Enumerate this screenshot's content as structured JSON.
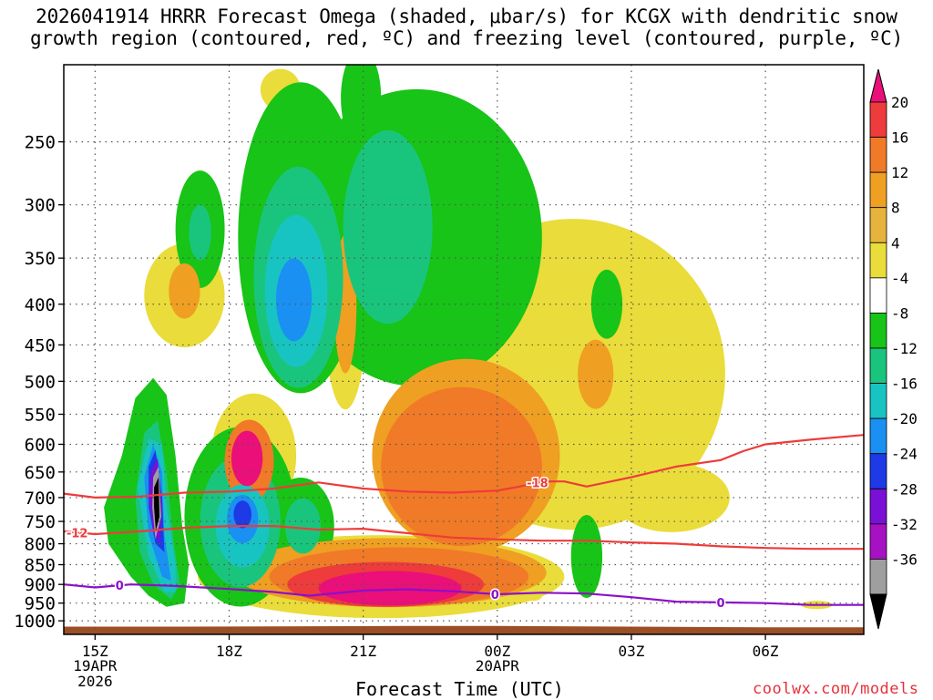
{
  "title": {
    "line1": "2026041914 HRRR Forecast Omega (shaded, μbar/s) for KCGX with dendritic snow",
    "line2": "growth region (contoured, red, ºC) and freezing level (contoured, purple, ºC)"
  },
  "footer": {
    "xlabel": "Forecast Time (UTC)",
    "credit": "coolwx.com/models"
  },
  "chart_data": {
    "type": "heatmap",
    "title": "2026041914 HRRR Forecast Omega (shaded, μbar/s) for KCGX with dendritic snow growth region (contoured, red, ºC) and freezing level (contoured, purple, ºC)",
    "xlabel": "Forecast Time (UTC)",
    "ylabel": "",
    "x_unit": "hours since 2026-04-19 14Z",
    "xlim": [
      0.3,
      18.2
    ],
    "y_axis": "pressure (mb), log scale, inverted",
    "ylim": [
      1040,
      200
    ],
    "x_ticks": [
      {
        "value": 1,
        "label": "15Z",
        "sub": [
          "19APR",
          "2026"
        ]
      },
      {
        "value": 4,
        "label": "18Z",
        "sub": []
      },
      {
        "value": 7,
        "label": "21Z",
        "sub": []
      },
      {
        "value": 10,
        "label": "00Z",
        "sub": [
          "20APR"
        ]
      },
      {
        "value": 13,
        "label": "03Z",
        "sub": []
      },
      {
        "value": 16,
        "label": "06Z",
        "sub": []
      }
    ],
    "y_ticks": [
      250,
      300,
      350,
      400,
      450,
      500,
      550,
      600,
      650,
      700,
      750,
      800,
      850,
      900,
      950,
      1000
    ],
    "grid": true,
    "colorbar": {
      "labels": [
        "20",
        "16",
        "12",
        "8",
        "4",
        "-4",
        "-8",
        "-12",
        "-16",
        "-20",
        "-24",
        "-28",
        "-32",
        "-36"
      ],
      "colors": [
        "#ea0f79",
        "#ee3b3b",
        "#f07a27",
        "#ef9f22",
        "#e6b43c",
        "#eadc3a",
        "#ffffff",
        "#17c417",
        "#19c57d",
        "#18c4c2",
        "#1a90f2",
        "#1d3ae6",
        "#7a0fd6",
        "#a711c4",
        "#9f9f9f",
        "#000000"
      ]
    },
    "omega_field": [
      {
        "value": -8,
        "t": 3.35,
        "p": 322,
        "rt": 0.55,
        "rp": 0.17
      },
      {
        "value": -12,
        "t": 3.35,
        "p": 325,
        "rt": 0.25,
        "rp": 0.08
      },
      {
        "value": -8,
        "t": 8.2,
        "p": 330,
        "rt": 2.8,
        "rp": 0.43
      },
      {
        "value": -12,
        "t": 7.55,
        "p": 320,
        "rt": 1.0,
        "rp": 0.28
      },
      {
        "value": -8,
        "t": 6.95,
        "p": 220,
        "rt": 0.45,
        "rp": 0.14
      },
      {
        "value": -8,
        "t": 5.6,
        "p": 330,
        "rt": 1.4,
        "rp": 0.45
      },
      {
        "value": -12,
        "t": 5.55,
        "p": 370,
        "rt": 1.0,
        "rp": 0.32
      },
      {
        "value": -16,
        "t": 5.5,
        "p": 385,
        "rt": 0.7,
        "rp": 0.22
      },
      {
        "value": -20,
        "t": 5.45,
        "p": 395,
        "rt": 0.4,
        "rp": 0.12
      },
      {
        "value": -8,
        "t": 12.45,
        "p": 400,
        "rt": 0.35,
        "rp": 0.1
      },
      {
        "value": -8,
        "t": 4.25,
        "p": 740,
        "rt": 1.25,
        "rp": 0.26
      },
      {
        "value": -12,
        "t": 4.25,
        "p": 750,
        "rt": 0.9,
        "rp": 0.19
      },
      {
        "value": -16,
        "t": 4.3,
        "p": 760,
        "rt": 0.6,
        "rp": 0.12
      },
      {
        "value": -20,
        "t": 4.3,
        "p": 745,
        "rt": 0.35,
        "rp": 0.07
      },
      {
        "value": -24,
        "t": 4.3,
        "p": 735,
        "rt": 0.2,
        "rp": 0.04
      },
      {
        "value": -8,
        "t": 5.6,
        "p": 760,
        "rt": 0.75,
        "rp": 0.14
      },
      {
        "value": -12,
        "t": 5.65,
        "p": 760,
        "rt": 0.4,
        "rp": 0.08
      },
      {
        "value": -8,
        "t": 9.9,
        "p": 890,
        "rt": 0.4,
        "rp": 0.05
      },
      {
        "value": -12,
        "t": 9.9,
        "p": 895,
        "rt": 0.2,
        "rp": 0.025
      },
      {
        "value": -8,
        "t": 12.0,
        "p": 830,
        "rt": 0.35,
        "rp": 0.12
      },
      {
        "value": 4,
        "t": 11.7,
        "p": 490,
        "rt": 3.4,
        "rp": 0.45
      },
      {
        "value": 4,
        "t": 7.4,
        "p": 880,
        "rt": 4.1,
        "rp": 0.12
      },
      {
        "value": 8,
        "t": 7.6,
        "p": 870,
        "rt": 3.5,
        "rp": 0.1
      },
      {
        "value": 8,
        "t": 9.3,
        "p": 620,
        "rt": 2.1,
        "rp": 0.28
      },
      {
        "value": 12,
        "t": 7.8,
        "p": 880,
        "rt": 2.9,
        "rp": 0.085
      },
      {
        "value": 12,
        "t": 9.2,
        "p": 640,
        "rt": 1.8,
        "rp": 0.23
      },
      {
        "value": 16,
        "t": 7.5,
        "p": 900,
        "rt": 2.2,
        "rp": 0.065
      },
      {
        "value": 20,
        "t": 7.6,
        "p": 910,
        "rt": 1.6,
        "rp": 0.05
      },
      {
        "value": 4,
        "t": 4.55,
        "p": 620,
        "rt": 0.95,
        "rp": 0.18
      },
      {
        "value": 12,
        "t": 4.45,
        "p": 630,
        "rt": 0.55,
        "rp": 0.12
      },
      {
        "value": 20,
        "t": 4.4,
        "p": 625,
        "rt": 0.35,
        "rp": 0.08
      },
      {
        "value": 4,
        "t": 3.0,
        "p": 390,
        "rt": 0.9,
        "rp": 0.15
      },
      {
        "value": 8,
        "t": 3.0,
        "p": 385,
        "rt": 0.35,
        "rp": 0.08
      },
      {
        "value": 4,
        "t": 6.6,
        "p": 390,
        "rt": 0.5,
        "rp": 0.33
      },
      {
        "value": 8,
        "t": 6.6,
        "p": 400,
        "rt": 0.25,
        "rp": 0.2
      },
      {
        "value": 4,
        "t": 12.4,
        "p": 560,
        "rt": 1.2,
        "rp": 0.28
      },
      {
        "value": 8,
        "t": 12.2,
        "p": 490,
        "rt": 0.4,
        "rp": 0.1
      },
      {
        "value": 4,
        "t": 13.9,
        "p": 700,
        "rt": 1.3,
        "rp": 0.1
      },
      {
        "value": 4,
        "t": 5.15,
        "p": 215,
        "rt": 0.45,
        "rp": 0.06
      },
      {
        "value": 4,
        "t": 4.75,
        "p": 280,
        "rt": 0.15,
        "rp": 0.06
      },
      {
        "value": 4,
        "t": 10.8,
        "p": 930,
        "rt": 0.2,
        "rp": 0.015
      },
      {
        "value": 4,
        "t": 17.15,
        "p": 955,
        "rt": 0.35,
        "rp": 0.012
      }
    ],
    "omega_ribbon": [
      {
        "value": -8,
        "points": [
          [
            1.2,
            720
          ],
          [
            1.6,
            620
          ],
          [
            1.9,
            525
          ],
          [
            2.3,
            495
          ],
          [
            2.6,
            520
          ],
          [
            2.8,
            620
          ],
          [
            2.95,
            760
          ],
          [
            3.1,
            850
          ],
          [
            3.0,
            950
          ],
          [
            2.6,
            960
          ],
          [
            2.2,
            930
          ],
          [
            1.8,
            880
          ],
          [
            1.3,
            800
          ]
        ]
      },
      {
        "value": -12,
        "points": [
          [
            1.9,
            700
          ],
          [
            2.1,
            580
          ],
          [
            2.4,
            560
          ],
          [
            2.6,
            650
          ],
          [
            2.75,
            790
          ],
          [
            2.9,
            900
          ],
          [
            2.7,
            940
          ],
          [
            2.3,
            900
          ],
          [
            2.0,
            820
          ]
        ]
      },
      {
        "value": -16,
        "points": [
          [
            1.95,
            680
          ],
          [
            2.2,
            590
          ],
          [
            2.5,
            600
          ],
          [
            2.6,
            720
          ],
          [
            2.8,
            850
          ],
          [
            2.8,
            920
          ],
          [
            2.55,
            920
          ],
          [
            2.2,
            830
          ]
        ]
      },
      {
        "value": -20,
        "points": [
          [
            2.1,
            660
          ],
          [
            2.3,
            600
          ],
          [
            2.5,
            650
          ],
          [
            2.55,
            780
          ],
          [
            2.7,
            890
          ],
          [
            2.5,
            880
          ],
          [
            2.2,
            780
          ]
        ]
      },
      {
        "value": -24,
        "points": [
          [
            2.2,
            640
          ],
          [
            2.35,
            610
          ],
          [
            2.5,
            700
          ],
          [
            2.55,
            820
          ],
          [
            2.35,
            800
          ],
          [
            2.2,
            720
          ]
        ]
      },
      {
        "value": -28,
        "points": [
          [
            2.25,
            650
          ],
          [
            2.4,
            625
          ],
          [
            2.5,
            720
          ],
          [
            2.45,
            800
          ],
          [
            2.3,
            770
          ],
          [
            2.2,
            700
          ]
        ]
      },
      {
        "value": -32,
        "points": [
          [
            2.3,
            660
          ],
          [
            2.42,
            640
          ],
          [
            2.48,
            740
          ],
          [
            2.35,
            790
          ],
          [
            2.28,
            720
          ]
        ]
      },
      {
        "value": -36,
        "points": [
          [
            2.32,
            680
          ],
          [
            2.42,
            660
          ],
          [
            2.44,
            740
          ],
          [
            2.36,
            770
          ],
          [
            2.32,
            720
          ]
        ]
      }
    ],
    "snow_growth_contours": [
      {
        "label": "-18",
        "color": "#ee3b3b",
        "label_at": 10.9,
        "points": [
          [
            0.3,
            692
          ],
          [
            1.0,
            700
          ],
          [
            2.0,
            698
          ],
          [
            3.0,
            690
          ],
          [
            4.0,
            688
          ],
          [
            5.0,
            682
          ],
          [
            6.0,
            670
          ],
          [
            7.0,
            682
          ],
          [
            8.0,
            688
          ],
          [
            9.0,
            690
          ],
          [
            10.0,
            686
          ],
          [
            10.5,
            678
          ],
          [
            11.0,
            668
          ],
          [
            11.5,
            668
          ],
          [
            12.0,
            678
          ],
          [
            13.0,
            660
          ],
          [
            14.0,
            640
          ],
          [
            15.0,
            628
          ],
          [
            15.5,
            612
          ],
          [
            16.0,
            600
          ],
          [
            17.0,
            592
          ],
          [
            18.2,
            584
          ]
        ]
      },
      {
        "label": "-12",
        "color": "#ee3b3b",
        "label_at": 0.6,
        "points": [
          [
            0.3,
            772
          ],
          [
            1.0,
            778
          ],
          [
            2.0,
            772
          ],
          [
            3.0,
            764
          ],
          [
            4.0,
            760
          ],
          [
            5.0,
            760
          ],
          [
            6.0,
            768
          ],
          [
            7.0,
            766
          ],
          [
            8.0,
            776
          ],
          [
            9.0,
            786
          ],
          [
            10.0,
            790
          ],
          [
            11.0,
            793
          ],
          [
            12.0,
            793
          ],
          [
            13.0,
            797
          ],
          [
            14.0,
            800
          ],
          [
            15.0,
            806
          ],
          [
            16.0,
            810
          ],
          [
            17.0,
            812
          ],
          [
            18.2,
            812
          ]
        ]
      }
    ],
    "freezing_level": {
      "label": "0",
      "color": "#8b10c8",
      "label_positions": [
        1.55,
        9.95,
        15.0
      ],
      "points": [
        [
          0.3,
          900
        ],
        [
          1.0,
          908
        ],
        [
          1.8,
          900
        ],
        [
          2.8,
          904
        ],
        [
          4.0,
          912
        ],
        [
          5.0,
          920
        ],
        [
          5.8,
          930
        ],
        [
          7.0,
          916
        ],
        [
          8.0,
          913
        ],
        [
          9.0,
          918
        ],
        [
          10.0,
          926
        ],
        [
          11.0,
          922
        ],
        [
          12.0,
          924
        ],
        [
          13.0,
          934
        ],
        [
          14.0,
          946
        ],
        [
          15.0,
          948
        ],
        [
          16.0,
          950
        ],
        [
          17.0,
          955
        ],
        [
          18.2,
          955
        ]
      ]
    },
    "terrain": {
      "color": "#9b4f27",
      "top_points": [
        [
          0.3,
          1017
        ],
        [
          3.0,
          1017
        ],
        [
          8.0,
          1015
        ],
        [
          10.0,
          1015
        ],
        [
          13.0,
          1017
        ],
        [
          16.0,
          1019
        ],
        [
          18.2,
          1019
        ]
      ]
    }
  }
}
